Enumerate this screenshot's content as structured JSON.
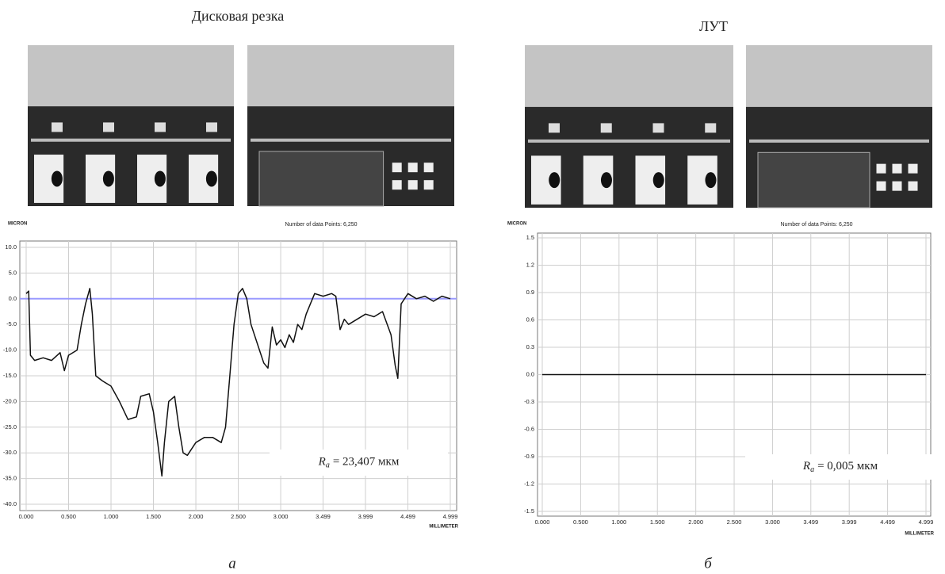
{
  "chart_data": [
    {
      "type": "line",
      "title": "Дисковая резка",
      "subtitle": "Number of data Points: 6,250",
      "ylabel": "MICRON",
      "xlabel": "MILLIMETER",
      "caption": "а",
      "annotation": [
        "R",
        "a",
        "= 23,407 мкм"
      ],
      "color": "#111111",
      "zero_line_color": "#9a9aff",
      "grid": true,
      "xlim": [
        0,
        4.999
      ],
      "ylim": [
        -40,
        10
      ],
      "xticks": [
        {
          "value": 0,
          "label": "0.000"
        },
        {
          "value": 0.5,
          "label": "0.500"
        },
        {
          "value": 1,
          "label": "1.000"
        },
        {
          "value": 1.5,
          "label": "1.500"
        },
        {
          "value": 2,
          "label": "2.000"
        },
        {
          "value": 2.5,
          "label": "2.500"
        },
        {
          "value": 3,
          "label": "3.000"
        },
        3.499,
        3.999,
        4.499,
        4.999
      ],
      "yticks": [
        {
          "value": 10,
          "label": "10.0"
        },
        {
          "value": 5,
          "label": "5.0"
        },
        {
          "value": 0,
          "label": "0.0"
        },
        {
          "value": -5,
          "label": "-5.0"
        },
        {
          "value": -10,
          "label": "-10.0"
        },
        {
          "value": -15,
          "label": "-15.0"
        },
        {
          "value": -20,
          "label": "-20.0"
        },
        {
          "value": -25,
          "label": "-25.0"
        },
        {
          "value": -30,
          "label": "-30.0"
        },
        {
          "value": -35,
          "label": "-35.0"
        },
        {
          "value": -40,
          "label": "-40.0"
        }
      ],
      "x": [
        0,
        0.03,
        0.05,
        0.1,
        0.2,
        0.3,
        0.4,
        0.45,
        0.5,
        0.6,
        0.65,
        0.7,
        0.75,
        0.78,
        0.82,
        0.9,
        1.0,
        1.1,
        1.2,
        1.3,
        1.35,
        1.45,
        1.5,
        1.55,
        1.6,
        1.63,
        1.68,
        1.75,
        1.8,
        1.85,
        1.9,
        2.0,
        2.1,
        2.2,
        2.3,
        2.35,
        2.4,
        2.45,
        2.5,
        2.55,
        2.6,
        2.65,
        2.75,
        2.8,
        2.85,
        2.9,
        2.95,
        3.0,
        3.05,
        3.1,
        3.15,
        3.2,
        3.25,
        3.3,
        3.35,
        3.4,
        3.5,
        3.6,
        3.65,
        3.7,
        3.75,
        3.8,
        3.9,
        4.0,
        4.1,
        4.2,
        4.3,
        4.35,
        4.38,
        4.42,
        4.5,
        4.6,
        4.7,
        4.8,
        4.9,
        4.999
      ],
      "values": [
        1,
        1.5,
        -11,
        -12,
        -11.5,
        -12,
        -10.5,
        -14,
        -11,
        -10,
        -5,
        -1,
        2,
        -3,
        -15,
        -16,
        -17,
        -20,
        -23.5,
        -23,
        -19,
        -18.5,
        -22,
        -28,
        -34.5,
        -28,
        -20,
        -19,
        -25,
        -30,
        -30.5,
        -28,
        -27,
        -27,
        -28,
        -25,
        -15,
        -5,
        1,
        2,
        0,
        -5,
        -10,
        -12.5,
        -13.5,
        -5.5,
        -9,
        -8,
        -9.5,
        -7,
        -8.5,
        -5,
        -6,
        -3,
        -1,
        1,
        0.5,
        1,
        0.5,
        -6,
        -4,
        -5,
        -4,
        -3,
        -3.5,
        -2.5,
        -7,
        -13,
        -15.5,
        -1,
        1,
        0,
        0.5,
        -0.5,
        0.5,
        0
      ]
    },
    {
      "type": "line",
      "title": "ЛУТ",
      "subtitle": "Number of data Points: 6,250",
      "ylabel": "MICRON",
      "xlabel": "MILLIMETER",
      "caption": "б",
      "annotation": [
        "R",
        "a",
        "= 0,005 мкм"
      ],
      "color": "#111111",
      "grid": true,
      "xlim": [
        0,
        4.999
      ],
      "ylim": [
        -1.5,
        1.5
      ],
      "xticks": [
        {
          "value": 0,
          "label": "0.000"
        },
        {
          "value": 0.5,
          "label": "0.500"
        },
        {
          "value": 1,
          "label": "1.000"
        },
        {
          "value": 1.5,
          "label": "1.500"
        },
        {
          "value": 2,
          "label": "2.000"
        },
        {
          "value": 2.5,
          "label": "2.500"
        },
        {
          "value": 3,
          "label": "3.000"
        },
        3.499,
        3.999,
        4.499,
        4.999
      ],
      "yticks": [
        1.5,
        1.2,
        0.9,
        0.6,
        0.3,
        {
          "value": 0,
          "label": "0.0"
        },
        -0.3,
        -0.6,
        -0.9,
        -1.2,
        -1.5
      ],
      "x": [
        0,
        1,
        2,
        3,
        4,
        4.999
      ],
      "values": [
        0,
        0,
        0,
        0,
        0,
        0
      ]
    }
  ]
}
